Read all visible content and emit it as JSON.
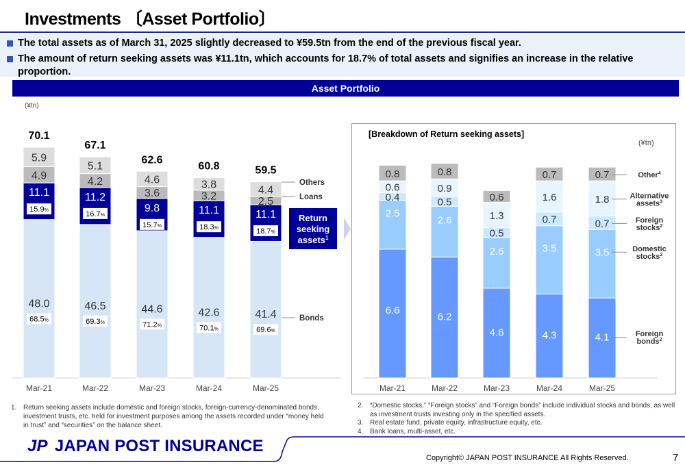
{
  "header": {
    "title": "Investments 〔Asset Portfolio〕"
  },
  "summary": [
    "The total assets as of March 31, 2025 slightly decreased to ¥59.5tn from the end of the previous fiscal year.",
    "The amount of return seeking assets was ¥11.1tn, which accounts for 18.7% of total assets and signifies an increase in the relative proportion."
  ],
  "banner": "Asset Portfolio",
  "colors": {
    "brand": "#000099",
    "bonds": "#d6e6f7",
    "return_seeking": "#000099",
    "loans": "#bbbbbb",
    "others": "#dddddd",
    "foreign_bonds": "#6699ff",
    "domestic_stocks": "#99ccff",
    "foreign_stocks": "#cce9ff",
    "alternative": "#e6f5ff",
    "other": "#bbbbbb"
  },
  "chart_data": [
    {
      "type": "bar",
      "stacked": true,
      "unit": "(¥tn)",
      "categories": [
        "Mar-21",
        "Mar-22",
        "Mar-23",
        "Mar-24",
        "Mar-25"
      ],
      "totals": [
        "70.1",
        "67.1",
        "62.6",
        "60.8",
        "59.5"
      ],
      "series": [
        {
          "name": "Bonds",
          "values": [
            48.0,
            46.5,
            44.6,
            42.6,
            41.4
          ],
          "shares": [
            "68.5",
            "69.3",
            "71.2",
            "70.1",
            "69.6"
          ]
        },
        {
          "name": "Return seeking assets",
          "superscript": "1",
          "values": [
            11.1,
            11.2,
            9.8,
            11.1,
            11.1
          ],
          "shares": [
            "15.9",
            "16.7",
            "15.7",
            "18.3",
            "18.7"
          ]
        },
        {
          "name": "Loans",
          "values": [
            4.9,
            4.2,
            3.6,
            3.2,
            2.5
          ]
        },
        {
          "name": "Others",
          "values": [
            5.9,
            5.1,
            4.6,
            3.8,
            4.4
          ]
        }
      ],
      "percent_sign": "%"
    },
    {
      "type": "bar",
      "stacked": true,
      "title": "[Breakdown of Return seeking assets]",
      "unit": "(¥tn)",
      "categories": [
        "Mar-21",
        "Mar-22",
        "Mar-23",
        "Mar-24",
        "Mar-25"
      ],
      "series": [
        {
          "name": "Foreign bonds",
          "superscript": "2",
          "values": [
            6.6,
            6.2,
            4.6,
            4.3,
            4.1
          ]
        },
        {
          "name": "Domestic stocks",
          "superscript": "2",
          "values": [
            2.5,
            2.6,
            2.6,
            3.5,
            3.5
          ]
        },
        {
          "name": "Foreign stocks",
          "superscript": "2",
          "values": [
            0.4,
            0.5,
            0.5,
            0.7,
            0.7
          ]
        },
        {
          "name": "Alternative assets",
          "superscript": "3",
          "values": [
            0.6,
            0.9,
            1.3,
            1.6,
            1.8
          ]
        },
        {
          "name": "Other",
          "superscript": "4",
          "values": [
            0.8,
            0.8,
            0.6,
            0.7,
            0.7
          ]
        }
      ]
    }
  ],
  "notes_left": [
    {
      "num": "1.",
      "text": "Return seeking assets include domestic and foreign stocks, foreign-currency-denominated bonds, investment trusts, etc. held for investment purposes among the assets recorded under “money held in trust” and “securities” on the balance sheet."
    }
  ],
  "notes_right": [
    {
      "num": "2.",
      "text": "“Domestic stocks,” “Foreign stocks” and “Foreign bonds” include individual stocks and bonds, as well as investment trusts investing only in the specified assets."
    },
    {
      "num": "3.",
      "text": "Real estate fund, private equity, infrastructure equity, etc."
    },
    {
      "num": "4.",
      "text": "Bank loans, multi-asset, etc."
    }
  ],
  "footer": {
    "logo_mark": "JP",
    "logo_text": "JAPAN POST INSURANCE",
    "copyright": "Copyright© JAPAN POST INSURANCE All Rights Reserved.",
    "page": "7"
  }
}
